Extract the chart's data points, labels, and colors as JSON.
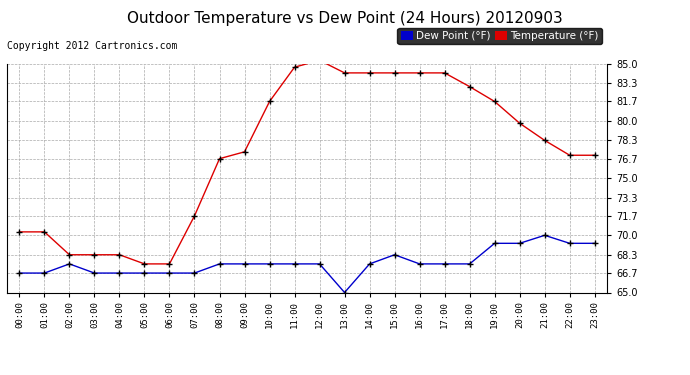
{
  "title": "Outdoor Temperature vs Dew Point (24 Hours) 20120903",
  "copyright": "Copyright 2012 Cartronics.com",
  "x_labels": [
    "00:00",
    "01:00",
    "02:00",
    "03:00",
    "04:00",
    "05:00",
    "06:00",
    "07:00",
    "08:00",
    "09:00",
    "10:00",
    "11:00",
    "12:00",
    "13:00",
    "14:00",
    "15:00",
    "16:00",
    "17:00",
    "18:00",
    "19:00",
    "20:00",
    "21:00",
    "22:00",
    "23:00"
  ],
  "temperature": [
    70.3,
    70.3,
    68.3,
    68.3,
    68.3,
    67.5,
    67.5,
    71.7,
    76.7,
    77.3,
    81.7,
    84.7,
    85.3,
    84.2,
    84.2,
    84.2,
    84.2,
    84.2,
    83.0,
    81.7,
    79.8,
    78.3,
    77.0,
    77.0
  ],
  "dewpoint": [
    66.7,
    66.7,
    67.5,
    66.7,
    66.7,
    66.7,
    66.7,
    66.7,
    67.5,
    67.5,
    67.5,
    67.5,
    67.5,
    65.0,
    67.5,
    68.3,
    67.5,
    67.5,
    67.5,
    69.3,
    69.3,
    70.0,
    69.3,
    69.3
  ],
  "temp_color": "#dd0000",
  "dew_color": "#0000cc",
  "marker_color": "#000000",
  "bg_color": "#ffffff",
  "grid_color": "#aaaaaa",
  "ylim": [
    65.0,
    85.0
  ],
  "yticks": [
    65.0,
    66.7,
    68.3,
    70.0,
    71.7,
    73.3,
    75.0,
    76.7,
    78.3,
    80.0,
    81.7,
    83.3,
    85.0
  ],
  "legend_dew_bg": "#0000cc",
  "legend_temp_bg": "#dd0000",
  "title_fontsize": 11,
  "copyright_fontsize": 7,
  "legend_fontsize": 7.5
}
